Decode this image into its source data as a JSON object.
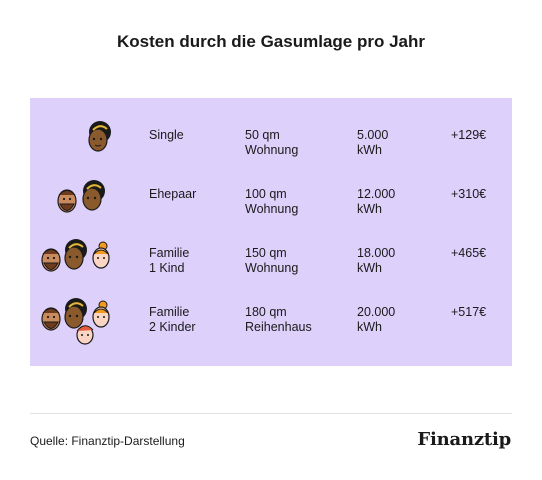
{
  "title": "Kosten durch die Gasumlage pro Jahr",
  "rows": [
    {
      "type": [
        "Single",
        ""
      ],
      "flat": [
        "50 qm",
        "Wohnung"
      ],
      "kwh": [
        "5.000",
        "kWh"
      ],
      "cost": "+129€",
      "avatars": [
        "person-woman-dark"
      ]
    },
    {
      "type": [
        "Ehepaar",
        ""
      ],
      "flat": [
        "100 qm",
        "Wohnung"
      ],
      "kwh": [
        "12.000",
        "kWh"
      ],
      "cost": "+310€",
      "avatars": [
        "person-man-beard",
        "person-woman-dark"
      ]
    },
    {
      "type": [
        "Familie",
        "1 Kind"
      ],
      "flat": [
        "150 qm",
        "Wohnung"
      ],
      "kwh": [
        "18.000",
        "kWh"
      ],
      "cost": "+465€",
      "avatars": [
        "person-man-beard",
        "person-woman-dark",
        "person-girl-bun"
      ]
    },
    {
      "type": [
        "Familie",
        "2 Kinder"
      ],
      "flat": [
        "180 qm",
        "Reihenhaus"
      ],
      "kwh": [
        "20.000",
        "kWh"
      ],
      "cost": "+517€",
      "avatars": [
        "person-man-beard",
        "person-woman-dark",
        "person-girl-bun",
        "person-boy-redhead"
      ]
    }
  ],
  "source": "Quelle: Finanztip-Darstellung",
  "logo": "Finanztip",
  "colors": {
    "panel": "#ddd0fb",
    "divider": "#e2e2e2",
    "text": "#1a1a1a"
  }
}
